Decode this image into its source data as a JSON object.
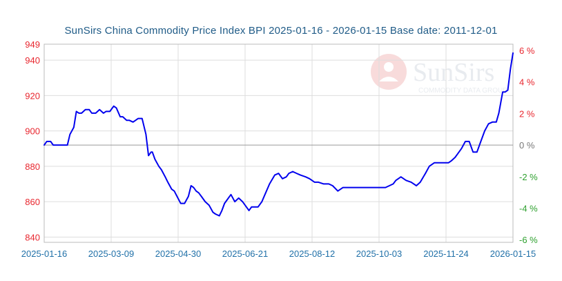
{
  "title": "SunSirs China Commodity Price Index BPI 2025-01-16 - 2026-01-15 Base date: 2011-12-01",
  "watermark": {
    "brand": "SunSirs",
    "tagline": "COMMODITY DATA GROUP"
  },
  "colors": {
    "line": "#0000ee",
    "left_axis": "#e8262e",
    "right_pos": "#e8262e",
    "right_neg": "#2ea02e",
    "x_axis": "#2070a8",
    "title": "#1f5b87",
    "grid": "#dddddd",
    "baseline": "#999999"
  },
  "chart_data": {
    "type": "line",
    "title": "SunSirs China Commodity Price Index BPI 2025-01-16 - 2026-01-15 Base date: 2011-12-01",
    "x_ticks": [
      "2025-01-16",
      "2025-03-09",
      "2025-04-30",
      "2025-06-21",
      "2025-08-12",
      "2025-10-03",
      "2025-11-24",
      "2026-01-15"
    ],
    "ylim": [
      837,
      949
    ],
    "y_ticks": [
      "949",
      "940",
      "920",
      "900",
      "880",
      "860",
      "840"
    ],
    "y_tick_values": [
      949,
      940,
      920,
      900,
      880,
      860,
      840
    ],
    "y2_ticks": [
      "6 %",
      "4 %",
      "2 %",
      "0 %",
      "-2 %",
      "-4 %",
      "-6 %"
    ],
    "y2_tick_values": [
      6,
      4,
      2,
      0,
      -2,
      -4,
      -6
    ],
    "baseline_value": 892.0,
    "grid": true,
    "series": [
      {
        "x": [
          "2025-01-16",
          "2025-01-18",
          "2025-01-21",
          "2025-01-23",
          "2025-01-26",
          "2025-02-03",
          "2025-02-05",
          "2025-02-08",
          "2025-02-10",
          "2025-02-12",
          "2025-02-14",
          "2025-02-17",
          "2025-02-20",
          "2025-02-22",
          "2025-02-25",
          "2025-02-28",
          "2025-03-03",
          "2025-03-05",
          "2025-03-08",
          "2025-03-11",
          "2025-03-13",
          "2025-03-16",
          "2025-03-18",
          "2025-03-21",
          "2025-03-23",
          "2025-03-26",
          "2025-03-30",
          "2025-04-02",
          "2025-04-05",
          "2025-04-07",
          "2025-04-09",
          "2025-04-10",
          "2025-04-12",
          "2025-04-15",
          "2025-04-17",
          "2025-04-20",
          "2025-04-22",
          "2025-04-25",
          "2025-04-27",
          "2025-05-02",
          "2025-05-05",
          "2025-05-08",
          "2025-05-10",
          "2025-05-12",
          "2025-05-14",
          "2025-05-16",
          "2025-05-18",
          "2025-05-21",
          "2025-05-24",
          "2025-05-27",
          "2025-05-29",
          "2025-06-01",
          "2025-06-03",
          "2025-06-05",
          "2025-06-08",
          "2025-06-10",
          "2025-06-13",
          "2025-06-16",
          "2025-06-19",
          "2025-06-21",
          "2025-06-24",
          "2025-06-26",
          "2025-06-29",
          "2025-07-01",
          "2025-07-04",
          "2025-07-07",
          "2025-07-10",
          "2025-07-14",
          "2025-07-17",
          "2025-07-20",
          "2025-07-23",
          "2025-07-25",
          "2025-07-28",
          "2025-07-31",
          "2025-08-03",
          "2025-08-07",
          "2025-08-10",
          "2025-08-14",
          "2025-08-17",
          "2025-08-21",
          "2025-08-25",
          "2025-08-28",
          "2025-09-01",
          "2025-09-05",
          "2025-09-08",
          "2025-09-11",
          "2025-09-14",
          "2025-09-17",
          "2025-09-22",
          "2025-09-26",
          "2025-09-30",
          "2025-10-03",
          "2025-10-08",
          "2025-10-14",
          "2025-10-16",
          "2025-10-20",
          "2025-10-24",
          "2025-10-28",
          "2025-11-01",
          "2025-11-04",
          "2025-11-08",
          "2025-11-11",
          "2025-11-15",
          "2025-11-19",
          "2025-11-24",
          "2025-11-26",
          "2025-11-28",
          "2025-12-01",
          "2025-12-03",
          "2025-12-06",
          "2025-12-09",
          "2025-12-12",
          "2025-12-15",
          "2025-12-18",
          "2025-12-21",
          "2025-12-24",
          "2025-12-27",
          "2025-12-30",
          "2026-01-02",
          "2026-01-04",
          "2026-01-07",
          "2026-01-09",
          "2026-01-11",
          "2026-01-13",
          "2026-01-15"
        ],
        "y": [
          892,
          894,
          894,
          892,
          892,
          892,
          898,
          902,
          911,
          910,
          910,
          912,
          912,
          910,
          910,
          912,
          910,
          911,
          911,
          914,
          913,
          908,
          908,
          906,
          906,
          905,
          907,
          907,
          898,
          886,
          888,
          888,
          884,
          880,
          878,
          874,
          871,
          867,
          866,
          859,
          859,
          863,
          869,
          868,
          866,
          865,
          863,
          860,
          858,
          854,
          853,
          852,
          855,
          859,
          862,
          864,
          860,
          862,
          860,
          858,
          855,
          857,
          857,
          857,
          860,
          865,
          870,
          875,
          876,
          873,
          874,
          876,
          877,
          876,
          875,
          874,
          873,
          871,
          871,
          870,
          870,
          869,
          866,
          868,
          868,
          868,
          868,
          868,
          868,
          868,
          868,
          868,
          868,
          870,
          872,
          874,
          872,
          871,
          869,
          871,
          876,
          880,
          882,
          882,
          882,
          882,
          883,
          885,
          887,
          890,
          894,
          894,
          888,
          888,
          894,
          900,
          904,
          905,
          905,
          910,
          922,
          922,
          923,
          935,
          944
        ]
      }
    ]
  }
}
